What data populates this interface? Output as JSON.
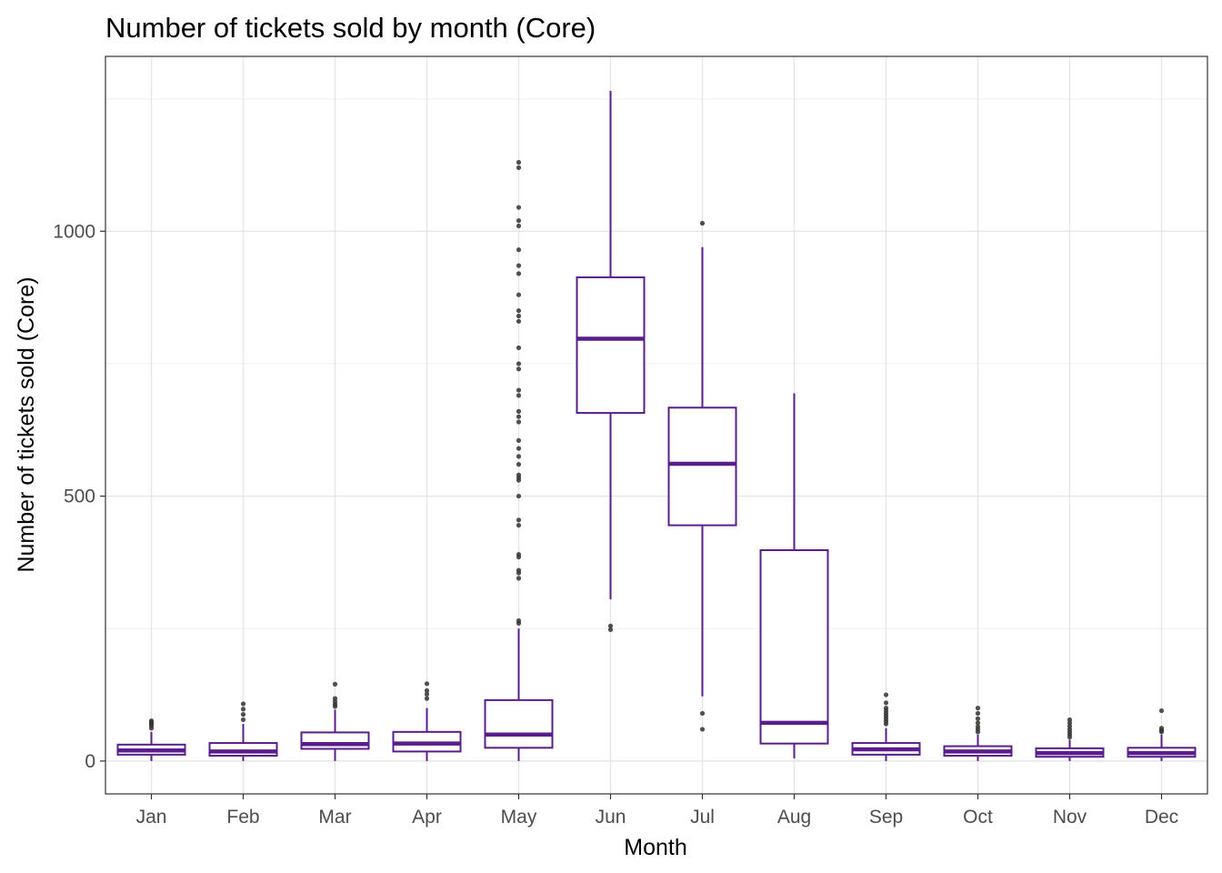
{
  "chart_data": {
    "type": "boxplot",
    "title": "Number of tickets sold by month (Core)",
    "xlabel": "Month",
    "ylabel": "Number of tickets sold (Core)",
    "ylim": [
      -62,
      1330
    ],
    "yticks": [
      0,
      500,
      1000
    ],
    "grid": true,
    "legend": "none",
    "box_color": "#5A1E8C",
    "outlier_color": "#333333",
    "categories": [
      "Jan",
      "Feb",
      "Mar",
      "Apr",
      "May",
      "Jun",
      "Jul",
      "Aug",
      "Sep",
      "Oct",
      "Nov",
      "Dec"
    ],
    "boxes": [
      {
        "month": "Jan",
        "whisker_low": 0,
        "q1": 12,
        "median": 20,
        "q3": 31,
        "whisker_high": 55,
        "outliers": [
          62,
          67,
          70,
          73,
          76
        ]
      },
      {
        "month": "Feb",
        "whisker_low": 0,
        "q1": 10,
        "median": 18,
        "q3": 34,
        "whisker_high": 70,
        "outliers": [
          78,
          88,
          98,
          108
        ]
      },
      {
        "month": "Mar",
        "whisker_low": 0,
        "q1": 23,
        "median": 32,
        "q3": 54,
        "whisker_high": 97,
        "outliers": [
          103,
          107,
          112,
          118,
          145
        ]
      },
      {
        "month": "Apr",
        "whisker_low": 0,
        "q1": 18,
        "median": 33,
        "q3": 55,
        "whisker_high": 100,
        "outliers": [
          118,
          126,
          133,
          146
        ]
      },
      {
        "month": "May",
        "whisker_low": 0,
        "q1": 25,
        "median": 50,
        "q3": 115,
        "whisker_high": 250,
        "outliers": [
          260,
          265,
          345,
          355,
          360,
          385,
          390,
          445,
          455,
          500,
          530,
          535,
          540,
          560,
          575,
          590,
          605,
          640,
          650,
          660,
          690,
          700,
          740,
          750,
          780,
          830,
          840,
          850,
          880,
          920,
          935,
          965,
          1010,
          1020,
          1045,
          1120,
          1130
        ]
      },
      {
        "month": "Jun",
        "whisker_low": 305,
        "q1": 657,
        "median": 797,
        "q3": 913,
        "whisker_high": 1265,
        "outliers": [
          248,
          255
        ]
      },
      {
        "month": "Jul",
        "whisker_low": 122,
        "q1": 445,
        "median": 561,
        "q3": 667,
        "whisker_high": 970,
        "outliers": [
          60,
          90,
          1015
        ]
      },
      {
        "month": "Aug",
        "whisker_low": 5,
        "q1": 33,
        "median": 72,
        "q3": 398,
        "whisker_high": 694,
        "outliers": []
      },
      {
        "month": "Sep",
        "whisker_low": 0,
        "q1": 12,
        "median": 22,
        "q3": 34,
        "whisker_high": 62,
        "outliers": [
          70,
          75,
          80,
          85,
          90,
          95,
          100,
          110,
          125
        ]
      },
      {
        "month": "Oct",
        "whisker_low": 0,
        "q1": 10,
        "median": 18,
        "q3": 28,
        "whisker_high": 50,
        "outliers": [
          55,
          60,
          65,
          72,
          80,
          90,
          100
        ]
      },
      {
        "month": "Nov",
        "whisker_low": 0,
        "q1": 8,
        "median": 15,
        "q3": 24,
        "whisker_high": 40,
        "outliers": [
          45,
          50,
          55,
          60,
          66,
          72,
          78
        ]
      },
      {
        "month": "Dec",
        "whisker_low": 0,
        "q1": 8,
        "median": 15,
        "q3": 25,
        "whisker_high": 50,
        "outliers": [
          55,
          58,
          62,
          95
        ]
      }
    ]
  }
}
